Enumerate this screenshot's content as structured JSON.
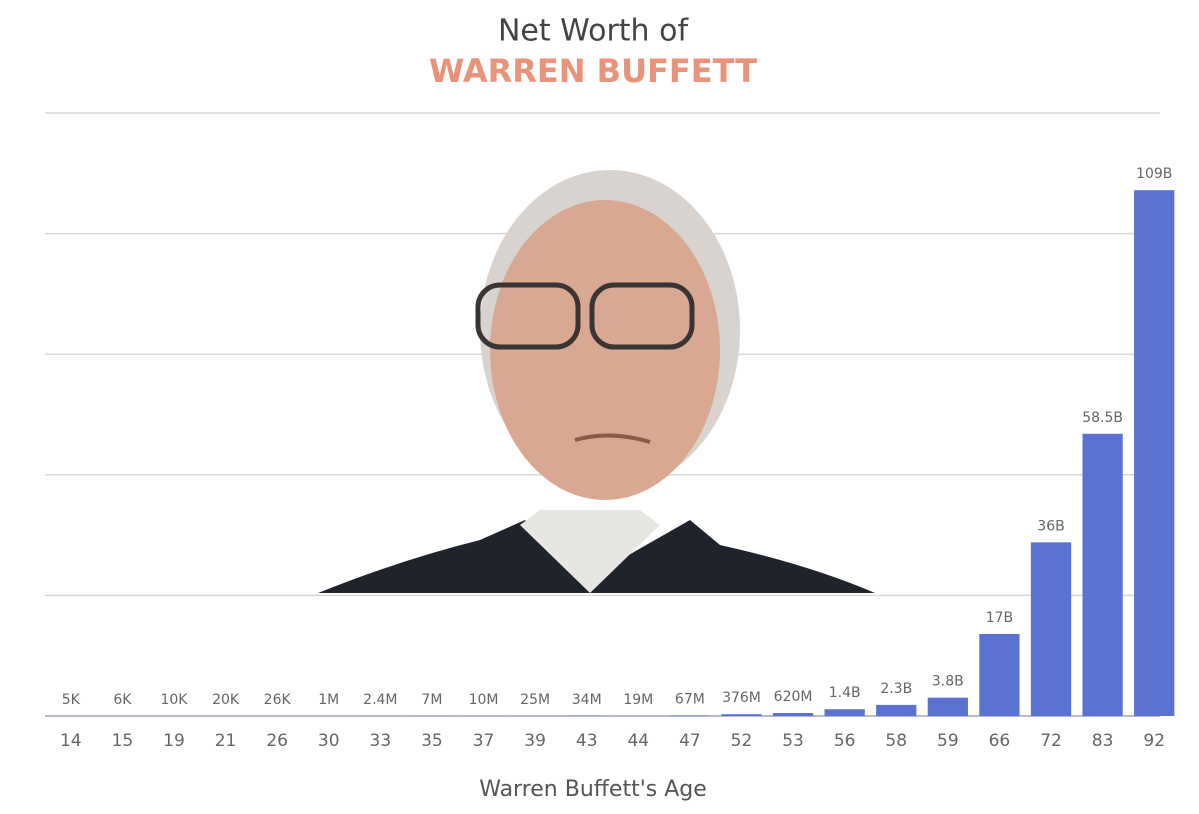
{
  "chart_data": {
    "type": "bar",
    "title": "Net Worth of",
    "subtitle": "WARREN BUFFETT",
    "x_label": "Warren Buffett's Age",
    "categories": [
      "14",
      "15",
      "19",
      "21",
      "26",
      "30",
      "33",
      "35",
      "37",
      "39",
      "43",
      "44",
      "47",
      "52",
      "53",
      "56",
      "58",
      "59",
      "66",
      "72",
      "83",
      "92"
    ],
    "values": [
      5000,
      6000,
      10000,
      20000,
      26000,
      1000000,
      2400000,
      7000000,
      10000000,
      25000000,
      34000000,
      19000000,
      67000000,
      376000000,
      620000000,
      1400000000,
      2300000000,
      3800000000,
      17000000000,
      36000000000,
      58500000000,
      109000000000
    ],
    "value_labels": [
      "5K",
      "6K",
      "10K",
      "20K",
      "26K",
      "1M",
      "2.4M",
      "7M",
      "10M",
      "25M",
      "34M",
      "19M",
      "67M",
      "376M",
      "620M",
      "1.4B",
      "2.3B",
      "3.8B",
      "17B",
      "36B",
      "58.5B",
      "109B"
    ],
    "color": "#5a72d2",
    "ylim": [
      0,
      125000000000
    ],
    "yticks": [
      0,
      25000000000,
      50000000000,
      75000000000,
      100000000000,
      125000000000
    ],
    "grid": true
  }
}
